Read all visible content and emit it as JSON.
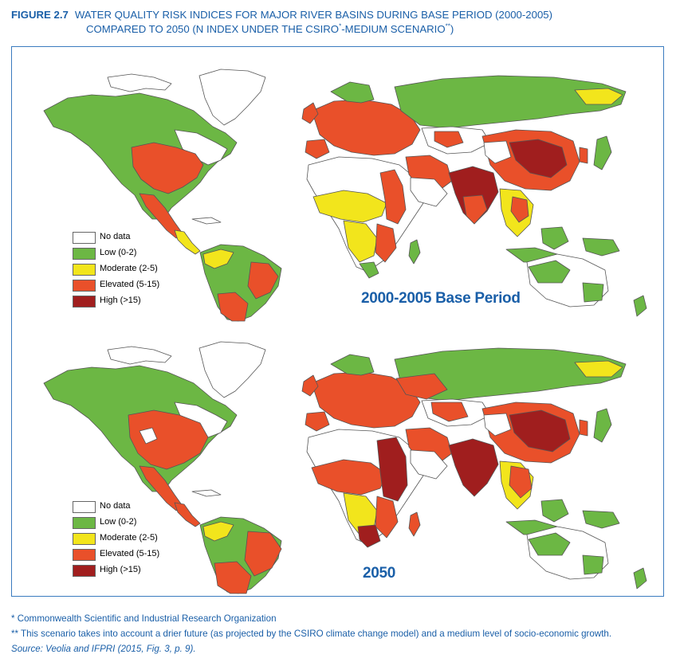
{
  "header": {
    "figure_label": "FIGURE 2.7",
    "title_line1": "WATER QUALITY RISK INDICES FOR MAJOR RIVER BASINS DURING BASE PERIOD (2000-2005)",
    "title_line2_a": "COMPARED TO 2050 (N INDEX UNDER THE CSIRO",
    "sup1": "*",
    "title_line2_b": "-MEDIUM SCENARIO",
    "sup2": "**",
    "title_line2_c": ")"
  },
  "legend": [
    {
      "label": "No data",
      "color": "#ffffff"
    },
    {
      "label": "Low (0-2)",
      "color": "#6cb744"
    },
    {
      "label": "Moderate (2-5)",
      "color": "#f2e51c"
    },
    {
      "label": "Elevated (5-15)",
      "color": "#e9502a"
    },
    {
      "label": "High (>15)",
      "color": "#a01e1e"
    }
  ],
  "maps": [
    {
      "title": "2000-2005 Base Period"
    },
    {
      "title": "2050"
    }
  ],
  "footnotes": {
    "note1": "* Commonwealth Scientific and Industrial Research Organization",
    "note2": "** This scenario takes into account a drier future (as projected by the CSIRO climate change model) and a medium level of socio-economic growth.",
    "source": "Source: Veolia and IFPRI (2015, Fig. 3, p. 9)."
  },
  "colors": {
    "accent": "#1a5fa8",
    "frame": "#3a7bbf",
    "border": "#555555"
  }
}
